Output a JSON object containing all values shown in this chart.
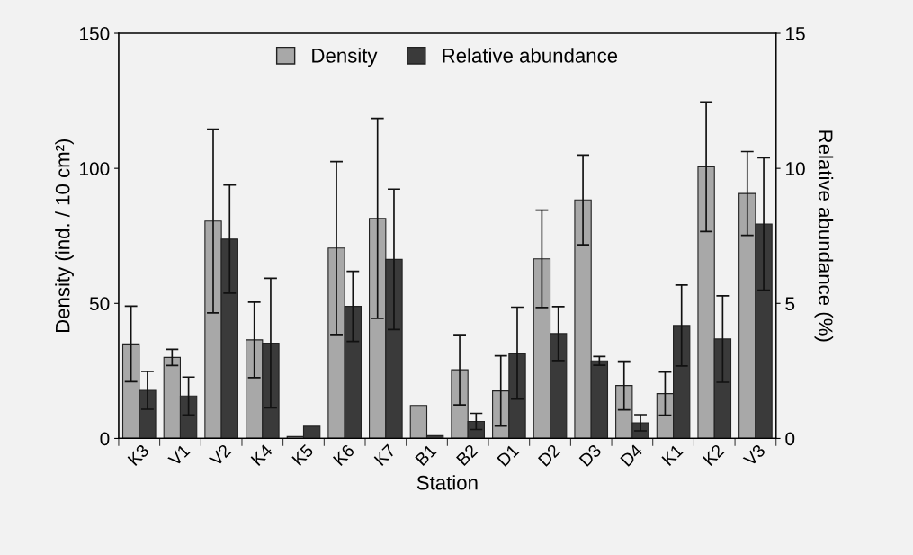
{
  "chart_data": {
    "type": "bar",
    "xlabel": "Station",
    "ylabel": "Density (ind. / 10 cm²)",
    "y2label": "Relative abundance (%)",
    "categories": [
      "K3",
      "V1",
      "V2",
      "K4",
      "K5",
      "K6",
      "K7",
      "B1",
      "B2",
      "D1",
      "D2",
      "D3",
      "D4",
      "K1",
      "K2",
      "V3"
    ],
    "series": [
      {
        "name": "Density",
        "color": "#a8a8a8",
        "values": [
          35,
          30,
          80.5,
          36.5,
          0.7,
          70.5,
          81.5,
          12.2,
          25.4,
          17.6,
          66.5,
          88.3,
          19.6,
          16.6,
          100.6,
          90.7
        ],
        "errors": [
          14,
          3,
          34,
          14,
          null,
          32,
          37,
          null,
          13,
          13,
          18,
          16.6,
          9,
          8,
          24,
          15.5
        ]
      },
      {
        "name": "Relative abundance",
        "color": "#3a3a3a",
        "axis": "y2",
        "values": [
          1.78,
          1.57,
          7.38,
          3.53,
          0.45,
          4.89,
          6.63,
          0.1,
          0.63,
          3.16,
          3.88,
          2.87,
          0.58,
          4.18,
          3.68,
          7.94
        ],
        "errors": [
          0.7,
          0.7,
          2,
          2.4,
          null,
          1.3,
          2.6,
          null,
          0.3,
          1.7,
          1,
          0.16,
          0.3,
          1.5,
          1.6,
          2.45
        ]
      }
    ],
    "ylim": [
      0,
      150
    ],
    "yticks": [
      0,
      50,
      100,
      150
    ],
    "y2lim": [
      0,
      15
    ],
    "y2ticks": [
      0,
      5,
      10,
      15
    ],
    "legend": "top",
    "grid": false
  }
}
